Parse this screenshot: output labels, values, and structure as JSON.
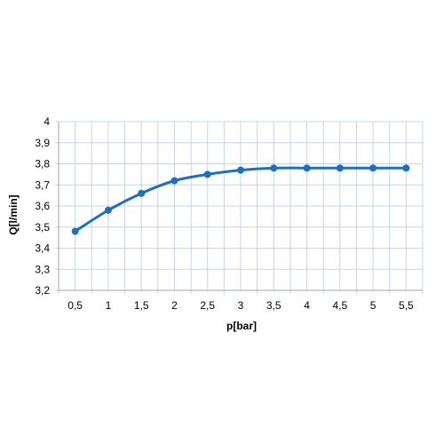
{
  "chart_data": {
    "type": "line",
    "title": "",
    "xlabel": "p[bar]",
    "ylabel": "Q[l/min]",
    "x_tick_labels": [
      "0,5",
      "1",
      "1,5",
      "2",
      "2,5",
      "3",
      "3,5",
      "4",
      "4,5",
      "5",
      "5,5"
    ],
    "y_tick_labels": [
      "3,2",
      "3,3",
      "3,4",
      "3,5",
      "3,6",
      "3,7",
      "3,8",
      "3,9",
      "4"
    ],
    "x": [
      0.5,
      1,
      1.5,
      2,
      2.5,
      3,
      3.5,
      4,
      4.5,
      5,
      5.5
    ],
    "ylim": [
      3.2,
      4.0
    ],
    "y_step": 0.1,
    "grid": true,
    "legend": "none",
    "series": [
      {
        "values": [
          3.48,
          3.58,
          3.66,
          3.72,
          3.75,
          3.77,
          3.78,
          3.78,
          3.78,
          3.78,
          3.78
        ],
        "color": "#1f6fbf"
      }
    ],
    "grid_color": "#c5d4e6",
    "axis_color": "#9aa5b1"
  }
}
